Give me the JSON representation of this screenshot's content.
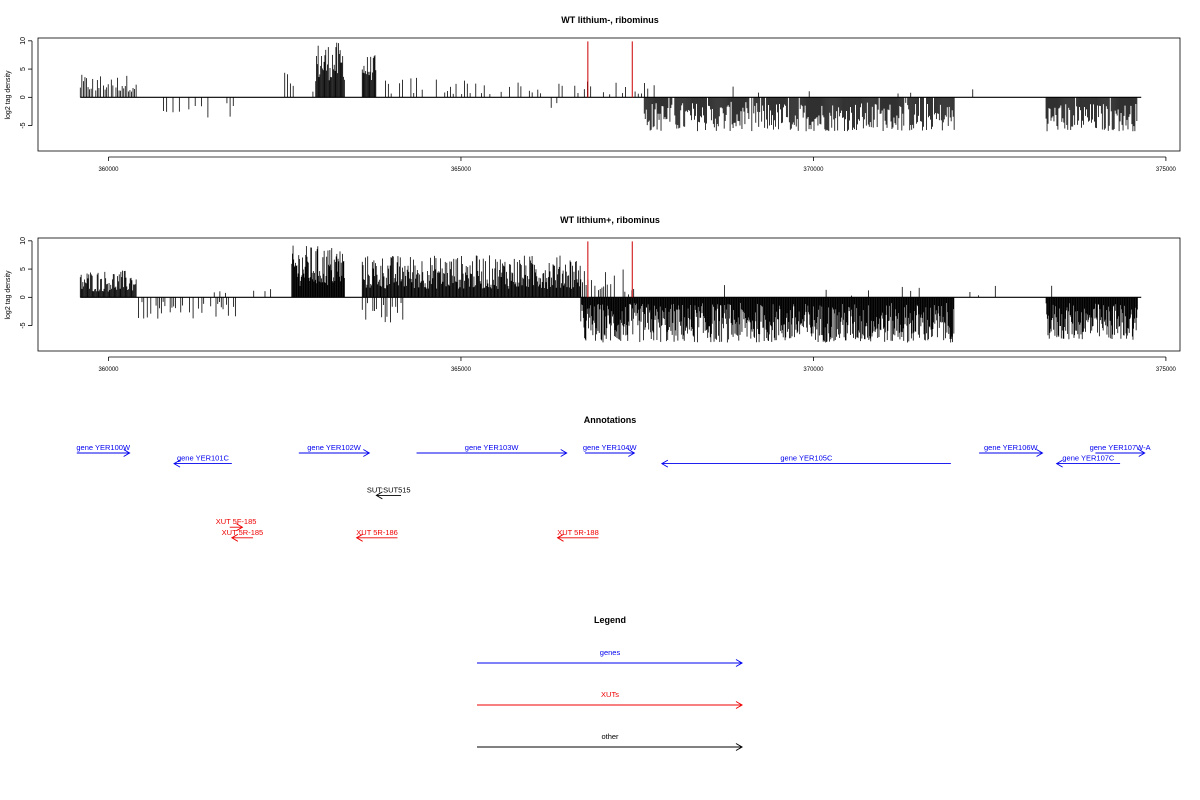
{
  "chart_data": [
    {
      "type": "bar",
      "title": "WT lithium-, ribominus",
      "ylabel": "log2 tag density",
      "xlim": [
        359000,
        375200
      ],
      "ylim": [
        -9.5,
        10.5
      ],
      "xticks": [
        360000,
        365000,
        370000,
        375000
      ],
      "xtick_labels": [
        "360000",
        "365000",
        "370000",
        "375000"
      ],
      "yticks": [
        -5,
        0,
        5,
        10
      ],
      "ytick_labels": [
        "-5",
        "0",
        "5",
        "10"
      ],
      "colors": {
        "bars": "#000000",
        "markers": "#cc0000"
      },
      "markers_x": [
        366800,
        367430
      ],
      "segments": [
        {
          "x0": 359600,
          "x1": 360400,
          "min": 1.0,
          "max": 4.0,
          "step": 22,
          "fill": 0.85
        },
        {
          "x0": 360600,
          "x1": 361800,
          "min": -4.0,
          "max": -0.8,
          "step": 45,
          "fill": 0.5
        },
        {
          "x0": 362500,
          "x1": 362950,
          "min": 1.0,
          "max": 5.0,
          "step": 40,
          "fill": 0.55
        },
        {
          "x0": 362950,
          "x1": 363350,
          "min": 3.0,
          "max": 9.8,
          "step": 12,
          "fill": 1.0
        },
        {
          "x0": 363600,
          "x1": 363800,
          "min": 3.0,
          "max": 7.5,
          "step": 12,
          "fill": 1.0
        },
        {
          "x0": 363850,
          "x1": 366200,
          "min": 0.5,
          "max": 3.8,
          "step": 40,
          "fill": 0.6
        },
        {
          "x0": 364100,
          "x1": 364700,
          "min": -1.5,
          "max": -0.3,
          "step": 90,
          "fill": 0.3
        },
        {
          "x0": 366300,
          "x1": 367800,
          "min": 0.5,
          "max": 3.0,
          "step": 45,
          "fill": 0.45
        },
        {
          "x0": 366200,
          "x1": 366400,
          "min": -2.0,
          "max": -0.5,
          "step": 80,
          "fill": 0.3
        },
        {
          "x0": 367600,
          "x1": 372000,
          "min": -6.0,
          "max": -0.8,
          "step": 14,
          "fill": 0.95
        },
        {
          "x0": 368500,
          "x1": 371500,
          "min": 0.3,
          "max": 2.0,
          "step": 180,
          "fill": 0.35
        },
        {
          "x0": 373300,
          "x1": 374600,
          "min": -6.0,
          "max": -1.0,
          "step": 14,
          "fill": 0.95
        },
        {
          "x0": 372200,
          "x1": 372300,
          "min": 0.5,
          "max": 1.5,
          "step": 60,
          "fill": 0.5
        }
      ]
    },
    {
      "type": "bar",
      "title": "WT lithium+, ribominus",
      "ylabel": "log2 tag density",
      "xlim": [
        359000,
        375200
      ],
      "ylim": [
        -9.5,
        10.5
      ],
      "xticks": [
        360000,
        365000,
        370000,
        375000
      ],
      "xtick_labels": [
        "360000",
        "365000",
        "370000",
        "375000"
      ],
      "yticks": [
        -5,
        0,
        5,
        10
      ],
      "ytick_labels": [
        "-5",
        "0",
        "5",
        "10"
      ],
      "colors": {
        "bars": "#000000",
        "markers": "#cc0000"
      },
      "markers_x": [
        366800,
        367430
      ],
      "segments": [
        {
          "x0": 359600,
          "x1": 360400,
          "min": 1.0,
          "max": 4.8,
          "step": 12,
          "fill": 1.0
        },
        {
          "x0": 360400,
          "x1": 361800,
          "min": -4.0,
          "max": -0.8,
          "step": 25,
          "fill": 0.65
        },
        {
          "x0": 361500,
          "x1": 362300,
          "min": 0.5,
          "max": 2.0,
          "step": 80,
          "fill": 0.4
        },
        {
          "x0": 362600,
          "x1": 363350,
          "min": 2.0,
          "max": 9.2,
          "step": 9,
          "fill": 1.0
        },
        {
          "x0": 363600,
          "x1": 366700,
          "min": 1.5,
          "max": 7.5,
          "step": 11,
          "fill": 1.0
        },
        {
          "x0": 363600,
          "x1": 364200,
          "min": -4.5,
          "max": -0.8,
          "step": 25,
          "fill": 0.8
        },
        {
          "x0": 366700,
          "x1": 367500,
          "min": 0.5,
          "max": 5.0,
          "step": 25,
          "fill": 0.65
        },
        {
          "x0": 366700,
          "x1": 372000,
          "min": -8.0,
          "max": -1.0,
          "step": 9,
          "fill": 1.0
        },
        {
          "x0": 368500,
          "x1": 372600,
          "min": 0.3,
          "max": 2.2,
          "step": 120,
          "fill": 0.35
        },
        {
          "x0": 373300,
          "x1": 374600,
          "min": -7.5,
          "max": -1.0,
          "step": 9,
          "fill": 1.0
        },
        {
          "x0": 373200,
          "x1": 373400,
          "min": 1.0,
          "max": 2.5,
          "step": 60,
          "fill": 0.5
        }
      ]
    }
  ],
  "annotations": {
    "title": "Annotations",
    "features": [
      {
        "label": "gene YER100W",
        "color": "#0000ee",
        "x0": 359550,
        "x1": 360300,
        "dir": "right",
        "row": 0
      },
      {
        "label": "gene YER101C",
        "color": "#0000ee",
        "x0": 360930,
        "x1": 361750,
        "dir": "left",
        "row": 1
      },
      {
        "label": "gene YER102W",
        "color": "#0000ee",
        "x0": 362700,
        "x1": 363700,
        "dir": "right",
        "row": 0
      },
      {
        "label": "gene YER103W",
        "color": "#0000ee",
        "x0": 364370,
        "x1": 366500,
        "dir": "right",
        "row": 0
      },
      {
        "label": "gene YER104W",
        "color": "#0000ee",
        "x0": 366760,
        "x1": 367460,
        "dir": "right",
        "row": 0
      },
      {
        "label": "gene YER105C",
        "color": "#0000ee",
        "x0": 367850,
        "x1": 371950,
        "dir": "left",
        "row": 1
      },
      {
        "label": "gene YER106W",
        "color": "#0000ee",
        "x0": 372350,
        "x1": 373250,
        "dir": "right",
        "row": 0
      },
      {
        "label": "gene YER107C",
        "color": "#0000ee",
        "x0": 373450,
        "x1": 374350,
        "dir": "left",
        "row": 1
      },
      {
        "label": "gene YER107W-A",
        "color": "#0000ee",
        "x0": 374000,
        "x1": 374700,
        "dir": "right",
        "row": 0
      },
      {
        "label": "SUT:SUT515",
        "color": "#000000",
        "x0": 363800,
        "x1": 364150,
        "dir": "left",
        "row": 4
      },
      {
        "label": "XUT 5F-185",
        "color": "#ee0000",
        "x0": 361720,
        "x1": 361900,
        "dir": "right",
        "row": 7
      },
      {
        "label": "XUT 5R-185",
        "color": "#ee0000",
        "x0": 361750,
        "x1": 362050,
        "dir": "left",
        "row": 8
      },
      {
        "label": "XUT 5R-186",
        "color": "#ee0000",
        "x0": 363520,
        "x1": 364100,
        "dir": "left",
        "row": 8
      },
      {
        "label": "XUT 5R-188",
        "color": "#ee0000",
        "x0": 366370,
        "x1": 366950,
        "dir": "left",
        "row": 8
      }
    ]
  },
  "legend": {
    "title": "Legend",
    "items": [
      {
        "label": "genes",
        "color": "#0000ee"
      },
      {
        "label": "XUTs",
        "color": "#ee0000"
      },
      {
        "label": "other",
        "color": "#000000"
      }
    ]
  }
}
